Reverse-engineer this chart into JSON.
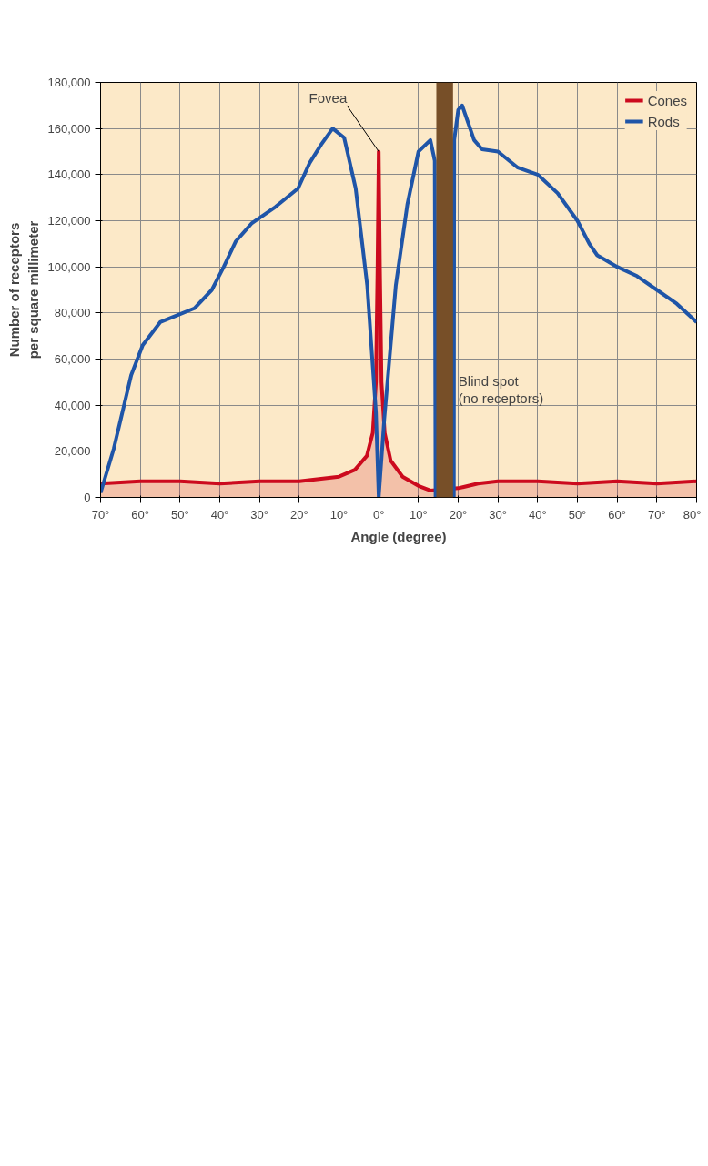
{
  "chart_data": {
    "type": "line",
    "xlabel": "Angle (degree)",
    "ylabel": "Number of receptors\nper square millimeter",
    "xlim": [
      -70,
      80
    ],
    "ylim": [
      0,
      180000
    ],
    "xticks": [
      {
        "value": -70,
        "label": "70°"
      },
      {
        "value": -60,
        "label": "60°"
      },
      {
        "value": -50,
        "label": "50°"
      },
      {
        "value": -40,
        "label": "40°"
      },
      {
        "value": -30,
        "label": "30°"
      },
      {
        "value": -20,
        "label": "20°"
      },
      {
        "value": -10,
        "label": "10°"
      },
      {
        "value": 0,
        "label": "0°"
      },
      {
        "value": 10,
        "label": "10°"
      },
      {
        "value": 20,
        "label": "20°"
      },
      {
        "value": 30,
        "label": "30°"
      },
      {
        "value": 40,
        "label": "40°"
      },
      {
        "value": 50,
        "label": "50°"
      },
      {
        "value": 60,
        "label": "60°"
      },
      {
        "value": 70,
        "label": "70°"
      },
      {
        "value": 80,
        "label": "80°"
      }
    ],
    "yticks": [
      {
        "value": 0,
        "label": "0"
      },
      {
        "value": 20000,
        "label": "20,000"
      },
      {
        "value": 40000,
        "label": "40,000"
      },
      {
        "value": 60000,
        "label": "60,000"
      },
      {
        "value": 80000,
        "label": "80,000"
      },
      {
        "value": 100000,
        "label": "100,000"
      },
      {
        "value": 120000,
        "label": "120,000"
      },
      {
        "value": 140000,
        "label": "140,000"
      },
      {
        "value": 160000,
        "label": "160,000"
      },
      {
        "value": 180000,
        "label": "180,000"
      }
    ],
    "grid": true,
    "legend": "top right",
    "line_style": "solid",
    "series": [
      {
        "name": "Cones",
        "type": "area",
        "color": "#cc0a1e",
        "x": [
          -70,
          -60,
          -50,
          -40,
          -30,
          -20,
          -15,
          -10,
          -6,
          -3,
          -1.5,
          -0.7,
          -0.3,
          0,
          0.3,
          0.7,
          1.5,
          3,
          6,
          10,
          13,
          20,
          25,
          30,
          40,
          50,
          60,
          70,
          80
        ],
        "values": [
          6000,
          7000,
          7000,
          6000,
          7000,
          7000,
          8000,
          9000,
          12000,
          18000,
          28000,
          50000,
          100000,
          150000,
          100000,
          50000,
          28000,
          16000,
          9000,
          5000,
          3000,
          4000,
          6000,
          7000,
          7000,
          6000,
          7000,
          6000,
          7000
        ]
      },
      {
        "name": "Rods",
        "color": "#1f55a8",
        "x": [
          -70,
          -66.7,
          -62.3,
          -59.4,
          -55,
          -50.7,
          -46.4,
          -42,
          -39,
          -36,
          -31.9,
          -26,
          -20.3,
          -17.4,
          -14.5,
          -11.6,
          -8.7,
          -5.8,
          -2.9,
          -0.7,
          0,
          1.4,
          4.3,
          7.2,
          10,
          13,
          14.1,
          14.3,
          18.9,
          19,
          20,
          21,
          22,
          24,
          26,
          30,
          35,
          40,
          45,
          50,
          53,
          55,
          57,
          60,
          65,
          70,
          75,
          80
        ],
        "values": [
          2000,
          21000,
          53000,
          66000,
          76000,
          79000,
          82000,
          90000,
          100000,
          111000,
          119000,
          126000,
          134000,
          145000,
          153000,
          160000,
          156000,
          134000,
          92000,
          37000,
          0,
          34000,
          92000,
          127000,
          150000,
          155000,
          146000,
          0,
          0,
          155000,
          168000,
          170000,
          165000,
          155000,
          151000,
          150000,
          143000,
          140000,
          132000,
          120000,
          110000,
          105000,
          103000,
          100000,
          96000,
          90000,
          84000,
          76000
        ]
      }
    ],
    "bands": [
      {
        "axis": "x",
        "from": 14.5,
        "to": 18.7,
        "label": "Blind spot\n(no receptors)",
        "color": "#774f28"
      }
    ],
    "annotations": [
      {
        "text": "Fovea",
        "x": 0,
        "y": 150000
      }
    ]
  }
}
